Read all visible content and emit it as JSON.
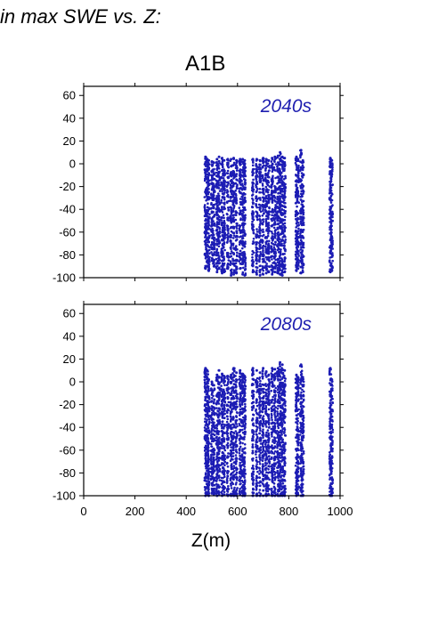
{
  "header": {
    "title": "in max SWE vs. Z:",
    "scenario": "A1B"
  },
  "colors": {
    "points": "#1c1cb4",
    "label": "#1f1fb0",
    "axis": "#000000"
  },
  "chart_data": [
    {
      "type": "scatter",
      "panel_label": "2040s",
      "xlim": [
        0,
        1000
      ],
      "ylim": [
        -100,
        68
      ],
      "yticks": [
        60,
        40,
        20,
        0,
        -20,
        -40,
        -60,
        -80,
        -100
      ],
      "y_tick_labels": [
        "60",
        "40",
        "20",
        "0",
        "-20",
        "-40",
        "-60",
        "-80",
        "-100"
      ],
      "columns": [
        {
          "x": 475,
          "ymin": -92,
          "ymax": 6
        },
        {
          "x": 482,
          "ymin": -90,
          "ymax": 4
        },
        {
          "x": 488,
          "ymin": -94,
          "ymax": 3
        },
        {
          "x": 500,
          "ymin": -85,
          "ymax": 2
        },
        {
          "x": 508,
          "ymin": -90,
          "ymax": 1
        },
        {
          "x": 520,
          "ymin": -95,
          "ymax": 4
        },
        {
          "x": 528,
          "ymin": -92,
          "ymax": 6
        },
        {
          "x": 540,
          "ymin": -96,
          "ymax": 5
        },
        {
          "x": 548,
          "ymin": -95,
          "ymax": 3
        },
        {
          "x": 562,
          "ymin": -92,
          "ymax": 4
        },
        {
          "x": 575,
          "ymin": -98,
          "ymax": 4
        },
        {
          "x": 585,
          "ymin": -97,
          "ymax": 5
        },
        {
          "x": 596,
          "ymin": -96,
          "ymax": 3
        },
        {
          "x": 610,
          "ymin": -92,
          "ymax": 4
        },
        {
          "x": 620,
          "ymin": -97,
          "ymax": 4
        },
        {
          "x": 628,
          "ymin": -98,
          "ymax": 3
        },
        {
          "x": 660,
          "ymin": -95,
          "ymax": 4
        },
        {
          "x": 675,
          "ymin": -97,
          "ymax": 4
        },
        {
          "x": 688,
          "ymin": -98,
          "ymax": 3
        },
        {
          "x": 700,
          "ymin": -97,
          "ymax": 5
        },
        {
          "x": 712,
          "ymin": -96,
          "ymax": 4
        },
        {
          "x": 722,
          "ymin": -95,
          "ymax": 3
        },
        {
          "x": 735,
          "ymin": -97,
          "ymax": 5
        },
        {
          "x": 746,
          "ymin": -95,
          "ymax": 6
        },
        {
          "x": 758,
          "ymin": -96,
          "ymax": 7
        },
        {
          "x": 766,
          "ymin": -97,
          "ymax": 10
        },
        {
          "x": 775,
          "ymin": -98,
          "ymax": 6
        },
        {
          "x": 784,
          "ymin": -95,
          "ymax": 5
        },
        {
          "x": 830,
          "ymin": -94,
          "ymax": 6
        },
        {
          "x": 836,
          "ymin": -92,
          "ymax": 4
        },
        {
          "x": 848,
          "ymin": -96,
          "ymax": 12
        },
        {
          "x": 855,
          "ymin": -95,
          "ymax": 3
        },
        {
          "x": 962,
          "ymin": -95,
          "ymax": 5
        },
        {
          "x": 968,
          "ymin": -94,
          "ymax": 3
        }
      ]
    },
    {
      "type": "scatter",
      "panel_label": "2080s",
      "xlim": [
        0,
        1000
      ],
      "ylim": [
        -100,
        68
      ],
      "yticks": [
        60,
        40,
        20,
        0,
        -20,
        -40,
        -60,
        -80,
        -100
      ],
      "y_tick_labels": [
        "60",
        "40",
        "20",
        "0",
        "-20",
        "-40",
        "-60",
        "-80",
        "-100"
      ],
      "x_tick_labels": [
        "0",
        "200",
        "400",
        "600",
        "800",
        "1000"
      ],
      "xticks": [
        0,
        200,
        400,
        600,
        800,
        1000
      ],
      "xlabel": "Z(m)",
      "columns": [
        {
          "x": 475,
          "ymin": -100,
          "ymax": 12
        },
        {
          "x": 482,
          "ymin": -99,
          "ymax": 10
        },
        {
          "x": 488,
          "ymin": -100,
          "ymax": 2
        },
        {
          "x": 500,
          "ymin": -98,
          "ymax": 0
        },
        {
          "x": 508,
          "ymin": -99,
          "ymax": -3
        },
        {
          "x": 520,
          "ymin": -100,
          "ymax": 6
        },
        {
          "x": 528,
          "ymin": -99,
          "ymax": 10
        },
        {
          "x": 540,
          "ymin": -100,
          "ymax": 7
        },
        {
          "x": 548,
          "ymin": -99,
          "ymax": 5
        },
        {
          "x": 562,
          "ymin": -100,
          "ymax": 5
        },
        {
          "x": 575,
          "ymin": -100,
          "ymax": 6
        },
        {
          "x": 585,
          "ymin": -100,
          "ymax": 12
        },
        {
          "x": 596,
          "ymin": -100,
          "ymax": 8
        },
        {
          "x": 610,
          "ymin": -99,
          "ymax": 10
        },
        {
          "x": 620,
          "ymin": -100,
          "ymax": 7
        },
        {
          "x": 628,
          "ymin": -100,
          "ymax": 5
        },
        {
          "x": 660,
          "ymin": -100,
          "ymax": 12
        },
        {
          "x": 675,
          "ymin": -100,
          "ymax": 10
        },
        {
          "x": 688,
          "ymin": -100,
          "ymax": 8
        },
        {
          "x": 700,
          "ymin": -100,
          "ymax": 12
        },
        {
          "x": 712,
          "ymin": -100,
          "ymax": 9
        },
        {
          "x": 722,
          "ymin": -99,
          "ymax": 6
        },
        {
          "x": 735,
          "ymin": -100,
          "ymax": 12
        },
        {
          "x": 746,
          "ymin": -100,
          "ymax": 11
        },
        {
          "x": 758,
          "ymin": -100,
          "ymax": 12
        },
        {
          "x": 766,
          "ymin": -100,
          "ymax": 17
        },
        {
          "x": 775,
          "ymin": -100,
          "ymax": 15
        },
        {
          "x": 784,
          "ymin": -100,
          "ymax": 10
        },
        {
          "x": 830,
          "ymin": -100,
          "ymax": 6
        },
        {
          "x": 836,
          "ymin": -99,
          "ymax": 4
        },
        {
          "x": 848,
          "ymin": -100,
          "ymax": 15
        },
        {
          "x": 855,
          "ymin": -100,
          "ymax": 4
        },
        {
          "x": 962,
          "ymin": -100,
          "ymax": 12
        },
        {
          "x": 968,
          "ymin": -100,
          "ymax": 2
        }
      ]
    }
  ]
}
